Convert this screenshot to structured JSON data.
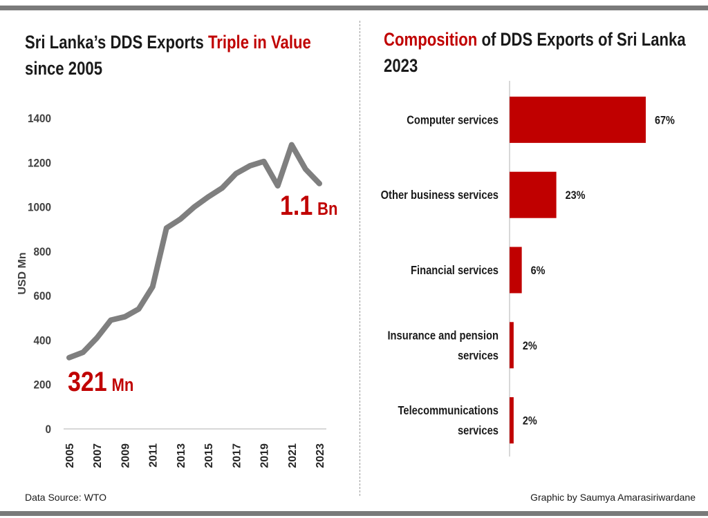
{
  "left_title": {
    "part1": "Sri Lanka’s DDS Exports ",
    "highlight": "Triple in Value",
    "line2": "since 2005"
  },
  "right_title": {
    "highlight": "Composition",
    "part1": " of DDS Exports of Sri Lanka",
    "line2": "2023"
  },
  "source": "Data Source: WTO",
  "credit": "Graphic by Saumya Amarasiriwardane",
  "colors": {
    "accent_red": "#c00000",
    "line_gray": "#7f7f7f",
    "frame_gray": "#7a7a7a"
  },
  "chart_data": [
    {
      "type": "line",
      "title": "Sri Lanka’s DDS Exports Triple in Value since 2005",
      "ylabel": "USD Mn",
      "xlabel": "",
      "ylim": [
        0,
        1400
      ],
      "yticks": [
        "0",
        "200",
        "400",
        "600",
        "800",
        "1000",
        "1200",
        "1400"
      ],
      "xticks": [
        "2005",
        "2007",
        "2009",
        "2011",
        "2013",
        "2015",
        "2017",
        "2019",
        "2021",
        "2023"
      ],
      "x": [
        2005,
        2006,
        2007,
        2008,
        2009,
        2010,
        2011,
        2012,
        2013,
        2014,
        2015,
        2016,
        2017,
        2018,
        2019,
        2020,
        2021,
        2022,
        2023
      ],
      "series": [
        {
          "values": [
            321,
            345,
            410,
            490,
            505,
            540,
            640,
            905,
            945,
            1000,
            1045,
            1085,
            1150,
            1185,
            1205,
            1095,
            1280,
            1170,
            1105
          ]
        }
      ],
      "annotations": [
        {
          "number": "321",
          "unit": "Mn"
        },
        {
          "number": "1.1",
          "unit": "Bn"
        }
      ],
      "grid": false
    },
    {
      "type": "bar",
      "orientation": "horizontal",
      "title": "Composition of DDS Exports of Sri Lanka 2023",
      "categories": [
        "Computer services",
        "Other business services",
        "Financial services",
        "Insurance and pension services",
        "Telecommunications services"
      ],
      "category_lines": [
        [
          "Computer services"
        ],
        [
          "Other business services"
        ],
        [
          "Financial services"
        ],
        [
          "Insurance and pension",
          "services"
        ],
        [
          "Telecommunications",
          "services"
        ]
      ],
      "values": [
        67,
        23,
        6,
        2,
        2
      ],
      "value_labels": [
        "67%",
        "23%",
        "6%",
        "2%",
        "2%"
      ],
      "grid": false
    }
  ]
}
